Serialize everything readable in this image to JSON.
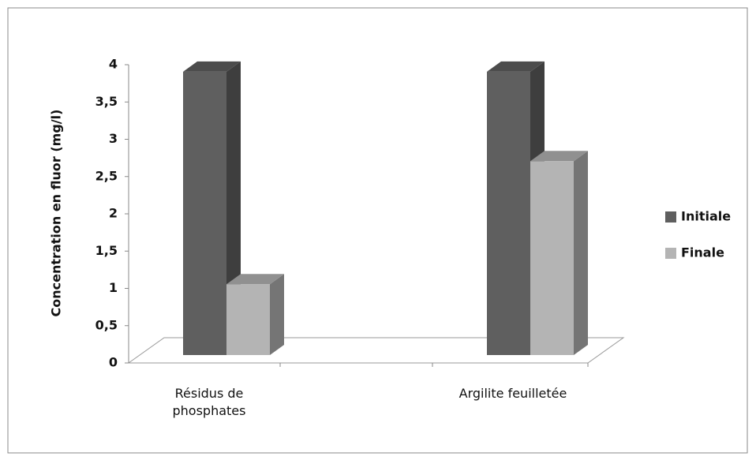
{
  "chart_data": {
    "type": "bar3d",
    "ylabel": "Concentration en fluor (mg/l)",
    "categories": [
      "Résidus de phosphates",
      "Argilite feuilletée"
    ],
    "series": [
      {
        "name": "Initiale",
        "color": "#5f5f5f",
        "values": [
          3.8,
          3.8
        ]
      },
      {
        "name": "Finale",
        "color": "#b4b4b4",
        "values": [
          0.95,
          2.6
        ]
      }
    ],
    "ylim": [
      0,
      4
    ],
    "yticks": [
      0,
      {
        "value": 0.5,
        "label": "0,5"
      },
      1,
      {
        "value": 1.5,
        "label": "1,5"
      },
      2,
      {
        "value": 2.5,
        "label": "2,5"
      },
      3,
      {
        "value": 3.5,
        "label": "3,5"
      },
      4
    ],
    "legend": "right"
  }
}
